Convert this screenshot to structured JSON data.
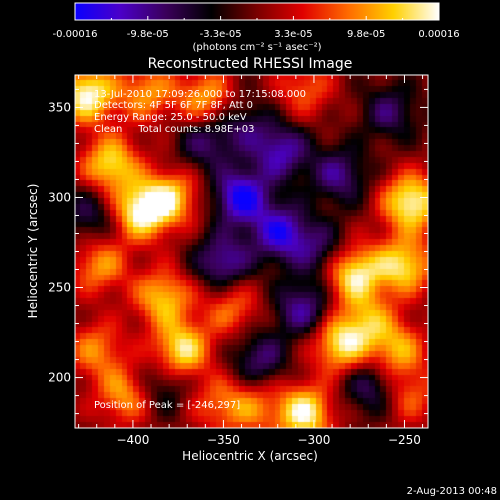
{
  "colorbar": {
    "tick_labels": [
      "-0.00016",
      "-9.8e-05",
      "-3.3e-05",
      "3.3e-05",
      "9.8e-05",
      "0.00016"
    ],
    "unit_label": "(photons cm⁻² s⁻¹ asec⁻²)",
    "gradient_colors": [
      "#0a00ff",
      "#4b00c8",
      "#3a005a",
      "#000000",
      "#7a0000",
      "#e00000",
      "#ff6a00",
      "#ffd000",
      "#ffffff"
    ]
  },
  "plot": {
    "title": "Reconstructed RHESSI Image",
    "xlabel": "Heliocentric X (arcsec)",
    "ylabel": "Heliocentric Y (arcsec)",
    "x_ticks": [
      "-400",
      "-350",
      "-300",
      "-250"
    ],
    "y_ticks": [
      "200",
      "250",
      "300",
      "350"
    ],
    "x_range": [
      -432,
      -237
    ],
    "y_range": [
      172,
      368
    ],
    "annotation_lines": [
      "13-Jul-2010 17:09:26.000 to 17:15:08.000",
      "Detectors: 4F 5F 6F 7F 8F, Att 0",
      "Energy Range: 25.0 - 50.0 keV",
      "Clean     Total counts: 8.98E+03"
    ],
    "peak_label": "Position of Peak = [-246,297]",
    "blobs": [
      {
        "x": -425,
        "y": 357,
        "v": 1.0
      },
      {
        "x": -412,
        "y": 318,
        "v": 0.85
      },
      {
        "x": -392,
        "y": 358,
        "v": 0.6
      },
      {
        "x": -360,
        "y": 355,
        "v": 0.65
      },
      {
        "x": -395,
        "y": 292,
        "v": 1.0
      },
      {
        "x": -378,
        "y": 300,
        "v": 0.7
      },
      {
        "x": -418,
        "y": 262,
        "v": 0.6
      },
      {
        "x": -383,
        "y": 244,
        "v": 0.75
      },
      {
        "x": -373,
        "y": 215,
        "v": 0.9
      },
      {
        "x": -420,
        "y": 215,
        "v": 0.55
      },
      {
        "x": -404,
        "y": 190,
        "v": 0.65
      },
      {
        "x": -345,
        "y": 238,
        "v": 0.5
      },
      {
        "x": -352,
        "y": 185,
        "v": 0.45
      },
      {
        "x": -333,
        "y": 183,
        "v": 0.45
      },
      {
        "x": -305,
        "y": 180,
        "v": 0.95
      },
      {
        "x": -278,
        "y": 258,
        "v": 0.95
      },
      {
        "x": -285,
        "y": 218,
        "v": 0.85
      },
      {
        "x": -270,
        "y": 232,
        "v": 0.55
      },
      {
        "x": -246,
        "y": 297,
        "v": 1.0
      },
      {
        "x": -250,
        "y": 262,
        "v": 0.85
      },
      {
        "x": -254,
        "y": 215,
        "v": 0.65
      },
      {
        "x": -247,
        "y": 190,
        "v": 0.45
      },
      {
        "x": -305,
        "y": 360,
        "v": 0.45
      },
      {
        "x": -340,
        "y": 300,
        "v": -0.95
      },
      {
        "x": -318,
        "y": 280,
        "v": -0.85
      },
      {
        "x": -318,
        "y": 325,
        "v": -0.7
      },
      {
        "x": -350,
        "y": 264,
        "v": -0.7
      },
      {
        "x": -286,
        "y": 312,
        "v": -0.6
      },
      {
        "x": -306,
        "y": 238,
        "v": -0.65
      },
      {
        "x": -330,
        "y": 210,
        "v": -0.55
      },
      {
        "x": -268,
        "y": 195,
        "v": -0.55
      },
      {
        "x": -258,
        "y": 347,
        "v": -0.5
      },
      {
        "x": -360,
        "y": 330,
        "v": -0.5
      },
      {
        "x": -423,
        "y": 290,
        "v": -0.45
      },
      {
        "x": -384,
        "y": 195,
        "v": -0.4
      },
      {
        "x": -295,
        "y": 270,
        "v": -0.5
      },
      {
        "x": -338,
        "y": 340,
        "v": -0.4
      }
    ]
  },
  "footer": {
    "timestamp": "2-Aug-2013 00:48"
  }
}
